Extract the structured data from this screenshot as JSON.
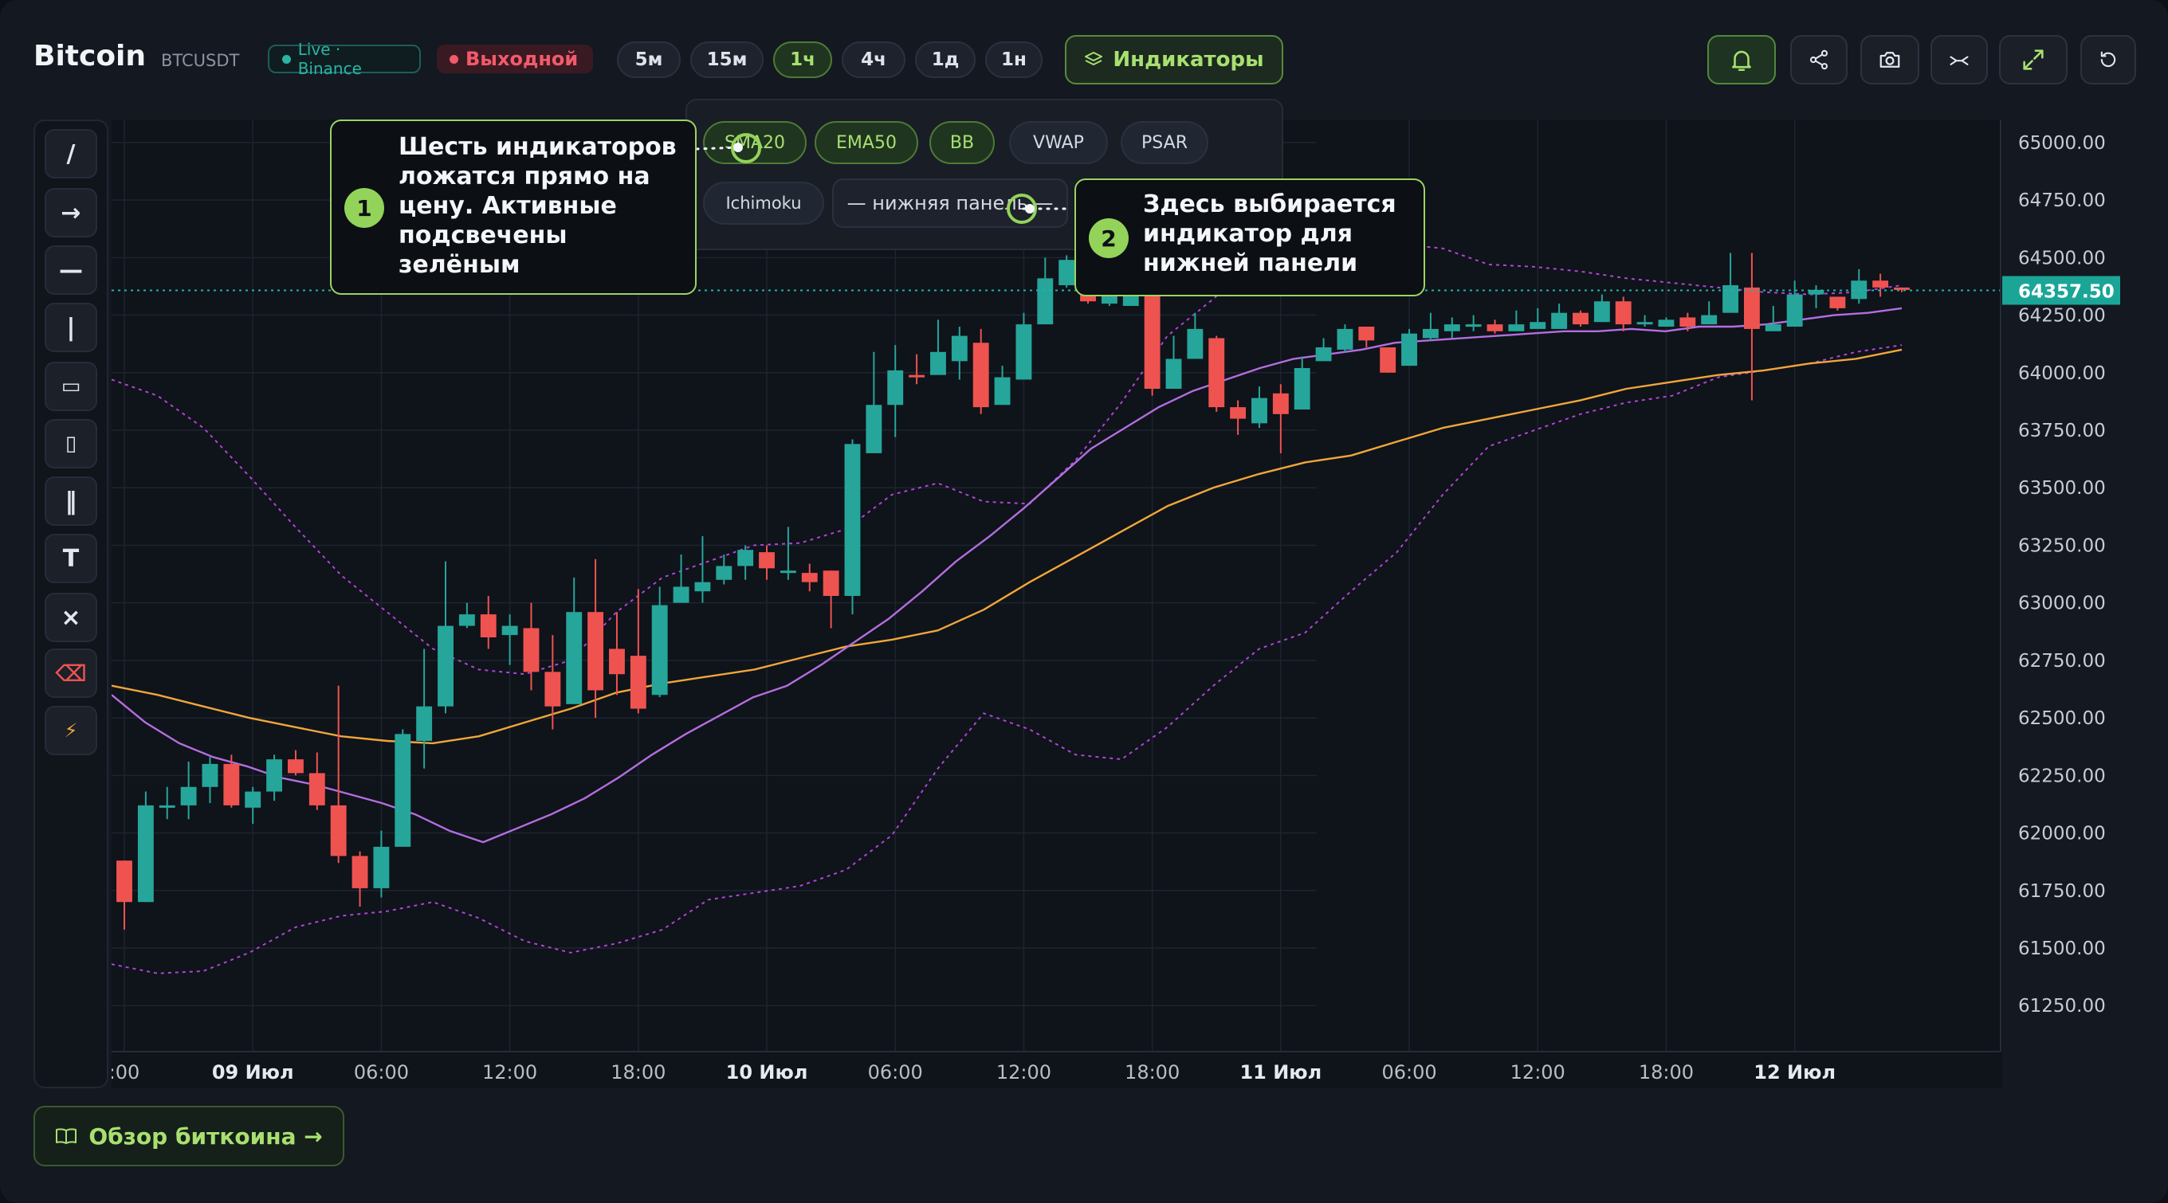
{
  "header": {
    "title": "Bitcoin",
    "ticker": "BTCUSDT",
    "live_badge": "Live · Binance",
    "session_badge": "Выходной",
    "timeframes": [
      "5м",
      "15м",
      "1ч",
      "4ч",
      "1д",
      "1н"
    ],
    "active_timeframe": "1ч",
    "indicators_label": "Индикаторы"
  },
  "header_icons": [
    "bell-icon",
    "share-icon",
    "camera-icon",
    "compare-icon",
    "expand-icon",
    "reset-icon"
  ],
  "indicator_panel": {
    "chips": [
      {
        "label": "SMA20",
        "active": true
      },
      {
        "label": "EMA50",
        "active": true
      },
      {
        "label": "BB",
        "active": true
      },
      {
        "label": "VWAP",
        "active": false
      },
      {
        "label": "PSAR",
        "active": false
      },
      {
        "label": "Ichimoku",
        "active": false
      }
    ],
    "lower_panel_select": "— нижняя панель —"
  },
  "tools": [
    {
      "glyph": "/",
      "name": "trendline"
    },
    {
      "glyph": "→",
      "name": "arrow"
    },
    {
      "glyph": "—",
      "name": "horizontal-line"
    },
    {
      "glyph": "|",
      "name": "vertical-line"
    },
    {
      "glyph": "▭",
      "name": "rectangle"
    },
    {
      "glyph": "▯",
      "name": "vertical-rectangle"
    },
    {
      "glyph": "‖",
      "name": "parallel-channel"
    },
    {
      "glyph": "T",
      "name": "text"
    },
    {
      "glyph": "×",
      "name": "clear"
    },
    {
      "glyph": "⌫",
      "name": "delete"
    },
    {
      "glyph": "⚡",
      "name": "magnet"
    }
  ],
  "callouts": [
    {
      "number": "1",
      "text": "Шесть индикаторов ложатся прямо на цену. Активные подсвечены зелёным"
    },
    {
      "number": "2",
      "text": "Здесь выбирается индикатор для нижней панели"
    }
  ],
  "review_button": "Обзор биткоина →",
  "colors": {
    "up": "#26a69a",
    "down": "#ef5350",
    "sma": "#b36ee0",
    "ema": "#f0a63a",
    "bb": "#b044d8",
    "accent": "#93d35a",
    "price_label": "#1aa597"
  },
  "chart_data": {
    "type": "candlestick",
    "symbol": "BTCUSDT",
    "interval": "1ч",
    "current_price": "64357.50",
    "y_ticks": [
      "65000.00",
      "64750.00",
      "64500.00",
      "64250.00",
      "64000.00",
      "63750.00",
      "63500.00",
      "63250.00",
      "63000.00",
      "62750.00",
      "62500.00",
      "62250.00",
      "62000.00",
      "61750.00",
      "61500.00",
      "61250.00"
    ],
    "x_ticks": [
      ":00",
      "09 Июл",
      "06:00",
      "12:00",
      "18:00",
      "10 Июл",
      "06:00",
      "12:00",
      "18:00",
      "11 Июл",
      "06:00",
      "12:00",
      "18:00",
      "12 Июл"
    ],
    "x_tick_bold": [
      false,
      true,
      false,
      false,
      false,
      true,
      false,
      false,
      false,
      true,
      false,
      false,
      false,
      true
    ],
    "ylim": [
      61050,
      65100
    ],
    "candles": [
      [
        61880,
        61700,
        61880,
        61580
      ],
      [
        61700,
        62120,
        62180,
        61700
      ],
      [
        62110,
        62120,
        62200,
        62060
      ],
      [
        62120,
        62200,
        62310,
        62060
      ],
      [
        62200,
        62300,
        62330,
        62130
      ],
      [
        62300,
        62120,
        62340,
        62110
      ],
      [
        62110,
        62180,
        62200,
        62040
      ],
      [
        62180,
        62320,
        62340,
        62140
      ],
      [
        62320,
        62260,
        62360,
        62250
      ],
      [
        62260,
        62120,
        62350,
        62100
      ],
      [
        62120,
        61900,
        62640,
        61870
      ],
      [
        61900,
        61760,
        61920,
        61680
      ],
      [
        61760,
        61940,
        62010,
        61720
      ],
      [
        61940,
        62430,
        62450,
        61950
      ],
      [
        62400,
        62550,
        62800,
        62280
      ],
      [
        62550,
        62900,
        63180,
        62520
      ],
      [
        62900,
        62950,
        63000,
        62890
      ],
      [
        62950,
        62850,
        63030,
        62800
      ],
      [
        62860,
        62900,
        62950,
        62730
      ],
      [
        62890,
        62700,
        63000,
        62620
      ],
      [
        62700,
        62550,
        62860,
        62450
      ],
      [
        62560,
        62960,
        63110,
        62600
      ],
      [
        62960,
        62620,
        63190,
        62500
      ],
      [
        62800,
        62690,
        62960,
        62600
      ],
      [
        62770,
        62540,
        63060,
        62520
      ],
      [
        62600,
        62990,
        63070,
        62590
      ],
      [
        63000,
        63070,
        63210,
        63010
      ],
      [
        63050,
        63090,
        63290,
        63000
      ],
      [
        63100,
        63160,
        63210,
        63080
      ],
      [
        63160,
        63230,
        63250,
        63100
      ],
      [
        63220,
        63150,
        63250,
        63100
      ],
      [
        63130,
        63140,
        63330,
        63100
      ],
      [
        63130,
        63090,
        63170,
        63050
      ],
      [
        63140,
        63030,
        63140,
        62890
      ],
      [
        63030,
        63690,
        63710,
        62950
      ],
      [
        63650,
        63860,
        64090,
        63660
      ],
      [
        63860,
        64010,
        64120,
        63720
      ],
      [
        63990,
        63980,
        64080,
        63950
      ],
      [
        63990,
        64090,
        64230,
        64050
      ],
      [
        64050,
        64160,
        64200,
        63970
      ],
      [
        64130,
        63850,
        64190,
        63820
      ],
      [
        63860,
        63980,
        64030,
        63860
      ],
      [
        63970,
        64210,
        64260,
        64000
      ],
      [
        64210,
        64410,
        64500,
        64240
      ],
      [
        64380,
        64490,
        64510,
        64370
      ],
      [
        64470,
        64310,
        64480,
        64300
      ],
      [
        64300,
        64390,
        64450,
        64290
      ],
      [
        64290,
        64410,
        64470,
        64300
      ],
      [
        64360,
        63930,
        64400,
        63900
      ],
      [
        63930,
        64060,
        64160,
        63960
      ],
      [
        64060,
        64190,
        64260,
        64080
      ],
      [
        64150,
        63850,
        64160,
        63830
      ],
      [
        63850,
        63800,
        63880,
        63730
      ],
      [
        63780,
        63890,
        63940,
        63760
      ],
      [
        63910,
        63820,
        63950,
        63650
      ],
      [
        63840,
        64020,
        64070,
        63840
      ],
      [
        64050,
        64110,
        64150,
        64050
      ],
      [
        64100,
        64190,
        64210,
        64090
      ],
      [
        64200,
        64140,
        64190,
        64110
      ],
      [
        64110,
        64000,
        64110,
        64000
      ],
      [
        64030,
        64170,
        64190,
        64030
      ],
      [
        64150,
        64190,
        64260,
        64140
      ],
      [
        64180,
        64210,
        64240,
        64150
      ],
      [
        64200,
        64210,
        64250,
        64180
      ],
      [
        64210,
        64180,
        64230,
        64170
      ],
      [
        64180,
        64210,
        64270,
        64190
      ],
      [
        64190,
        64220,
        64280,
        64220
      ],
      [
        64190,
        64260,
        64300,
        64240
      ],
      [
        64260,
        64210,
        64270,
        64200
      ],
      [
        64220,
        64310,
        64340,
        64220
      ],
      [
        64310,
        64210,
        64330,
        64180
      ],
      [
        64210,
        64220,
        64250,
        64200
      ],
      [
        64200,
        64230,
        64240,
        64220
      ],
      [
        64240,
        64200,
        64260,
        64180
      ],
      [
        64210,
        64250,
        64310,
        64210
      ],
      [
        64260,
        64380,
        64520,
        64270
      ],
      [
        64370,
        64190,
        64520,
        63880
      ],
      [
        64180,
        64210,
        64290,
        64200
      ],
      [
        64200,
        64340,
        64400,
        64210
      ],
      [
        64340,
        64360,
        64380,
        64280
      ],
      [
        64330,
        64280,
        64320,
        64270
      ],
      [
        64320,
        64400,
        64450,
        64300
      ],
      [
        64400,
        64370,
        64430,
        64330
      ],
      [
        64370,
        64360,
        64370,
        64350
      ]
    ],
    "sma20": [
      62600,
      62480,
      62390,
      62330,
      62290,
      62240,
      62210,
      62170,
      62130,
      62080,
      62010,
      61960,
      62020,
      62080,
      62150,
      62240,
      62340,
      62430,
      62510,
      62590,
      62640,
      62730,
      62830,
      62930,
      63050,
      63180,
      63290,
      63410,
      63540,
      63670,
      63760,
      63850,
      63920,
      63970,
      64020,
      64060,
      64080,
      64100,
      64130,
      64140,
      64150,
      64160,
      64170,
      64180,
      64180,
      64190,
      64180,
      64200,
      64200,
      64210,
      64230,
      64250,
      64260,
      64280
    ],
    "ema50": [
      62640,
      62600,
      62550,
      62500,
      62460,
      62420,
      62400,
      62390,
      62420,
      62480,
      62540,
      62610,
      62650,
      62680,
      62710,
      62760,
      62810,
      62840,
      62880,
      62970,
      63090,
      63200,
      63310,
      63420,
      63500,
      63560,
      63610,
      63640,
      63700,
      63760,
      63800,
      63840,
      63880,
      63930,
      63960,
      63990,
      64010,
      64040,
      64060,
      64100
    ],
    "bb_upper": [
      63970,
      63900,
      63760,
      63550,
      63330,
      63120,
      62960,
      62800,
      62710,
      62690,
      62750,
      62960,
      63110,
      63180,
      63250,
      63260,
      63320,
      63470,
      63520,
      63440,
      63430,
      63620,
      63870,
      64160,
      64320,
      64500,
      64510,
      64560,
      64560,
      64540,
      64470,
      64460,
      64440,
      64410,
      64390,
      64370,
      64350,
      64340,
      64350,
      64380
    ],
    "bb_lower": [
      61430,
      61390,
      61400,
      61480,
      61590,
      61640,
      61660,
      61700,
      61630,
      61530,
      61480,
      61520,
      61580,
      61710,
      61740,
      61770,
      61840,
      61990,
      62280,
      62520,
      62450,
      62340,
      62320,
      62460,
      62640,
      62800,
      62870,
      63050,
      63220,
      63470,
      63680,
      63750,
      63820,
      63870,
      63900,
      63980,
      64010,
      64040,
      64090,
      64120
    ]
  }
}
